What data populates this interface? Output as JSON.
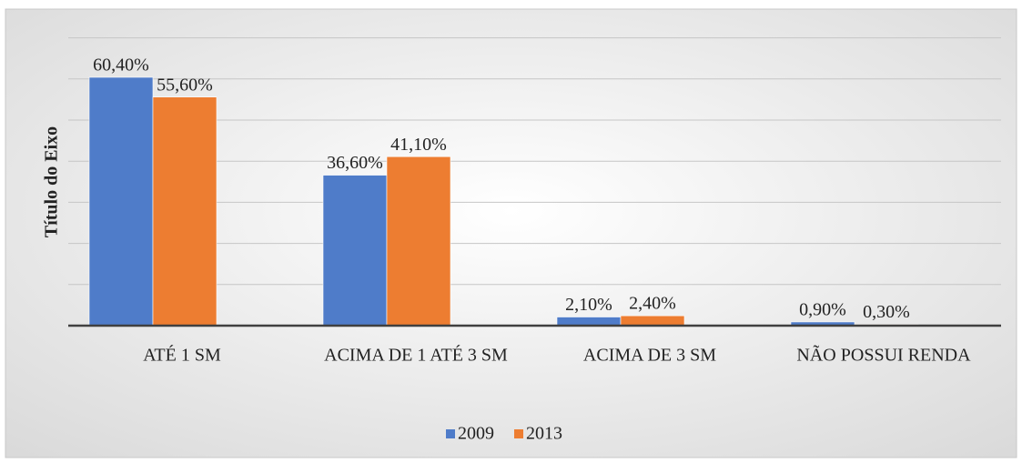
{
  "chart_data": {
    "type": "bar",
    "y_axis_title": "Título do Eixo",
    "categories": [
      "ATÉ 1 SM",
      "ACIMA DE 1 ATÉ 3 SM",
      "ACIMA DE 3 SM",
      "NÃO POSSUI RENDA"
    ],
    "series": [
      {
        "name": "2009",
        "color": "#4f7cc9",
        "values": [
          60.4,
          36.6,
          2.1,
          0.9
        ],
        "value_labels": [
          "60,40%",
          "36,60%",
          "2,10%",
          "0,90%"
        ]
      },
      {
        "name": "2013",
        "color": "#ed7d31",
        "values": [
          55.6,
          41.1,
          2.4,
          0.3
        ],
        "value_labels": [
          "55,60%",
          "41,10%",
          "2,40%",
          "0,30%"
        ]
      }
    ],
    "ylim": [
      0,
      70
    ],
    "yticks": [
      0,
      10,
      20,
      30,
      40,
      50,
      60,
      70
    ],
    "grid": true,
    "legend": "bottom"
  }
}
